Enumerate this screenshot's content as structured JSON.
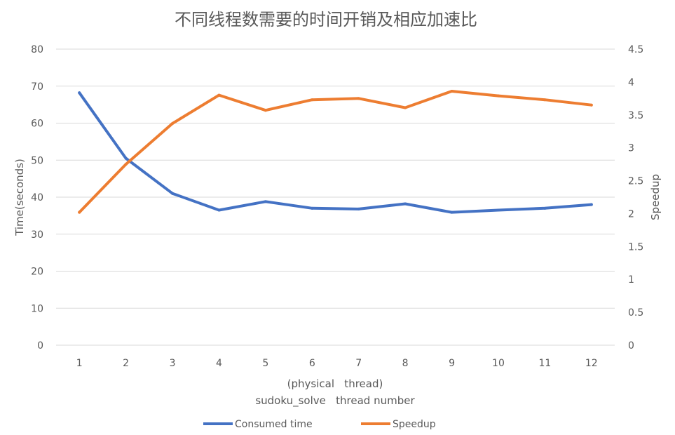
{
  "chart_data": {
    "type": "line",
    "title": "不同线程数需要的时间开销及相应加速比",
    "xlabel_line1": "(physical   thread)",
    "xlabel_line2": "sudoku_solve   thread number",
    "ylabel": "Time(seconds)",
    "y2label": "Speedup",
    "categories": [
      "1",
      "2",
      "3",
      "4",
      "5",
      "6",
      "7",
      "8",
      "9",
      "10",
      "11",
      "12"
    ],
    "ylim": [
      0,
      80
    ],
    "yticks": [
      0,
      10,
      20,
      30,
      40,
      50,
      60,
      70,
      80
    ],
    "y2lim": [
      0,
      4.5
    ],
    "y2ticks": [
      "0",
      "0.5",
      "1",
      "1.5",
      "2",
      "2.5",
      "3",
      "3.5",
      "4",
      "4.5"
    ],
    "grid": true,
    "legend_position": "bottom",
    "series": [
      {
        "name": "Consumed time",
        "axis": "left",
        "color": "#4472c4",
        "values": [
          68.2,
          50.5,
          41.0,
          36.5,
          38.8,
          37.0,
          36.8,
          38.2,
          35.9,
          36.5,
          37.0,
          38.0
        ]
      },
      {
        "name": "Speedup",
        "axis": "right",
        "color": "#ed7d31",
        "values": [
          2.02,
          2.75,
          3.37,
          3.8,
          3.57,
          3.73,
          3.75,
          3.61,
          3.86,
          3.79,
          3.73,
          3.65
        ]
      }
    ]
  }
}
